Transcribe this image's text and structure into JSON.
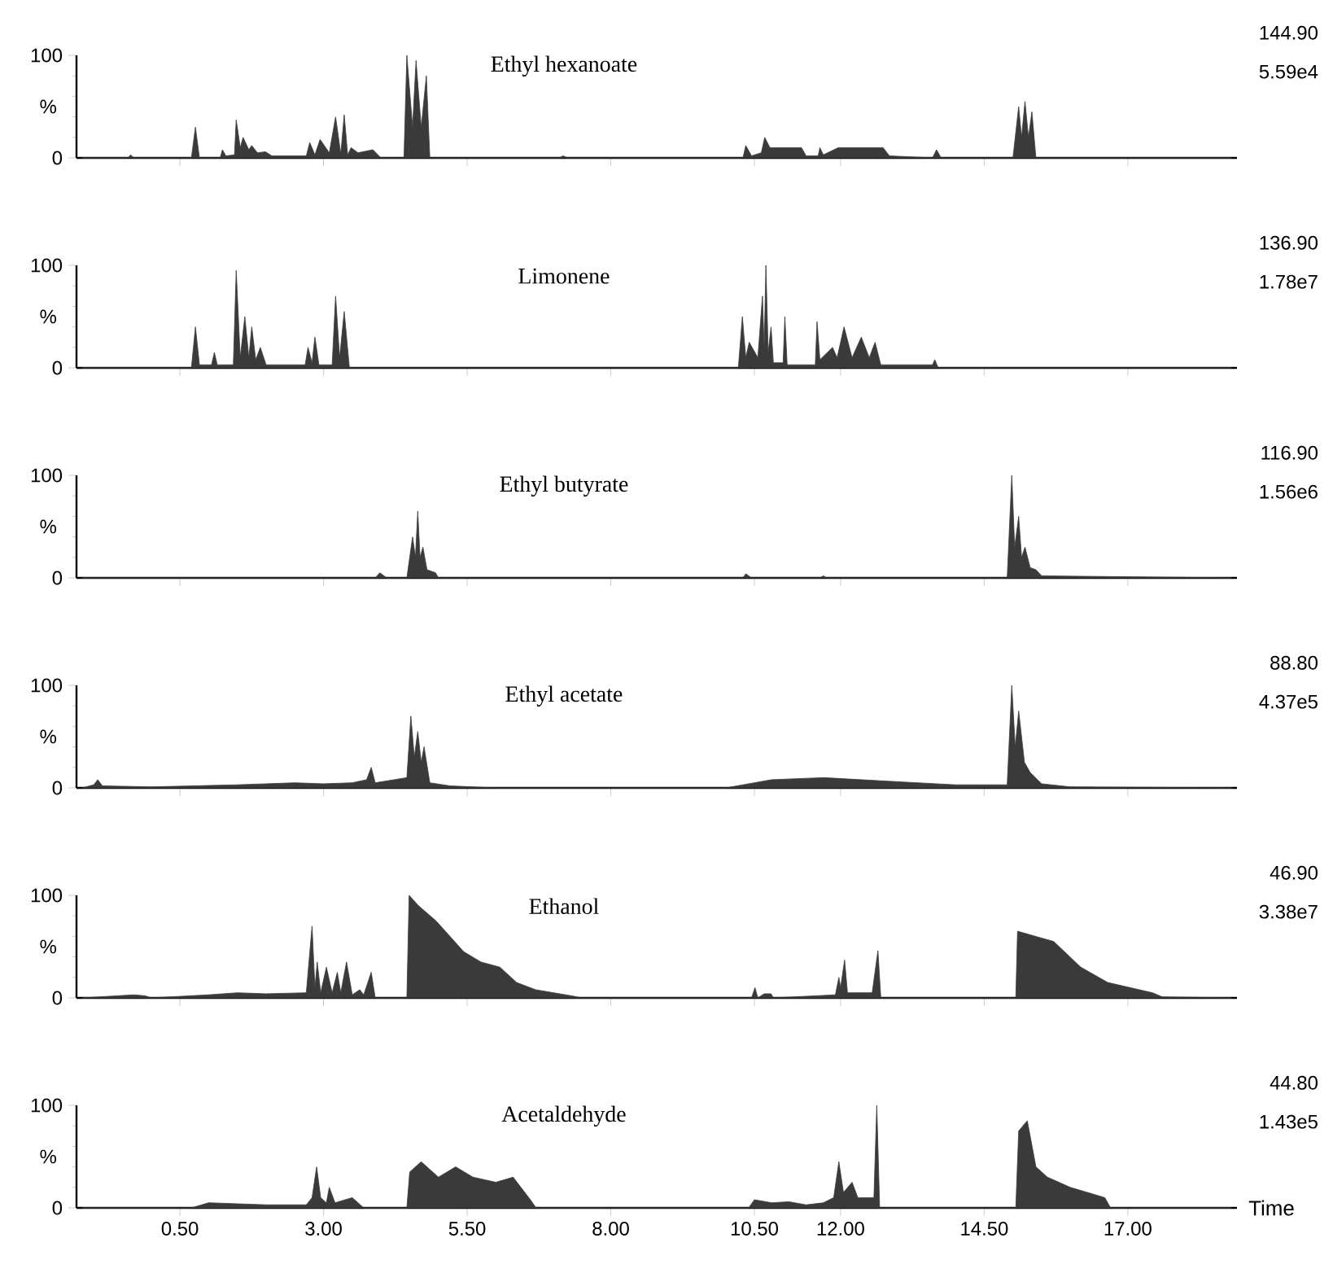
{
  "chart_data": [
    {
      "type": "area",
      "title": "Ethyl hexanoate",
      "annotations": [
        "144.90",
        "5.59e4"
      ],
      "ylabel": "%",
      "color": "#3a3a3a",
      "xlim": [
        -1.3,
        18.9
      ],
      "ylim": [
        0,
        100
      ],
      "yticks": [
        0,
        100
      ],
      "tick_labels": "y",
      "xticks": [
        {
          "value": 0.5,
          "label": null
        },
        {
          "value": 3,
          "label": null
        },
        {
          "value": 5.5,
          "label": null
        },
        {
          "value": 8,
          "label": null
        },
        {
          "value": 10.5,
          "label": null
        },
        {
          "value": 12,
          "label": null
        },
        {
          "value": 14.5,
          "label": null
        },
        {
          "value": 17,
          "label": null
        }
      ],
      "x": [
        -1.2,
        -0.4,
        -0.36,
        -0.3,
        0.7,
        0.77,
        0.84,
        1.2,
        1.24,
        1.3,
        1.45,
        1.48,
        1.55,
        1.6,
        1.7,
        1.75,
        1.85,
        1.99,
        2.1,
        2.7,
        2.76,
        2.85,
        2.94,
        3.1,
        3.21,
        3.3,
        3.36,
        3.42,
        3.48,
        3.6,
        3.86,
        4.0,
        4.4,
        4.45,
        4.55,
        4.61,
        4.7,
        4.79,
        4.85,
        7.1,
        7.17,
        7.25,
        10.3,
        10.35,
        10.45,
        10.62,
        10.68,
        10.77,
        11.05,
        11.32,
        11.4,
        11.61,
        11.64,
        11.7,
        11.96,
        12.74,
        12.85,
        13.6,
        13.67,
        13.75,
        15.0,
        15.1,
        15.15,
        15.21,
        15.27,
        15.33,
        15.4,
        18.8
      ],
      "values": [
        0,
        0,
        3,
        0,
        0,
        30,
        0,
        0,
        8,
        2,
        3,
        37,
        10,
        20,
        8,
        12,
        5,
        6,
        2,
        2,
        15,
        3,
        18,
        5,
        40,
        4,
        42,
        3,
        10,
        5,
        8,
        0,
        0,
        100,
        30,
        95,
        30,
        80,
        0,
        0,
        2,
        0,
        0,
        12,
        2,
        5,
        20,
        10,
        10,
        10,
        2,
        2,
        10,
        3,
        10,
        10,
        2,
        0,
        8,
        0,
        0,
        50,
        20,
        55,
        20,
        45,
        0,
        0
      ]
    },
    {
      "type": "area",
      "title": "Limonene",
      "annotations": [
        "136.90",
        "1.78e7"
      ],
      "ylabel": "%",
      "color": "#3a3a3a",
      "xlim": [
        -1.3,
        18.9
      ],
      "ylim": [
        0,
        100
      ],
      "yticks": [
        0,
        100
      ],
      "tick_labels": "y",
      "xticks": [
        {
          "value": 0.5,
          "label": null
        },
        {
          "value": 3,
          "label": null
        },
        {
          "value": 5.5,
          "label": null
        },
        {
          "value": 8,
          "label": null
        },
        {
          "value": 10.5,
          "label": null
        },
        {
          "value": 12,
          "label": null
        },
        {
          "value": 14.5,
          "label": null
        },
        {
          "value": 17,
          "label": null
        }
      ],
      "x": [
        -1.2,
        0.7,
        0.77,
        0.84,
        1.05,
        1.1,
        1.15,
        1.43,
        1.48,
        1.55,
        1.63,
        1.7,
        1.75,
        1.82,
        1.9,
        2.0,
        2.68,
        2.73,
        2.8,
        2.85,
        2.92,
        3.15,
        3.21,
        3.28,
        3.36,
        3.45,
        10.22,
        10.29,
        10.35,
        10.41,
        10.56,
        10.64,
        10.67,
        10.7,
        10.74,
        10.79,
        10.83,
        11.0,
        11.03,
        11.07,
        11.56,
        11.59,
        11.64,
        11.86,
        11.94,
        12.06,
        12.2,
        12.36,
        12.5,
        12.6,
        12.7,
        13.6,
        13.64,
        13.7,
        18.8
      ],
      "values": [
        0,
        0,
        40,
        3,
        3,
        15,
        3,
        3,
        95,
        10,
        50,
        10,
        40,
        8,
        20,
        3,
        3,
        20,
        5,
        30,
        3,
        3,
        70,
        10,
        55,
        0,
        0,
        50,
        10,
        25,
        10,
        70,
        20,
        100,
        15,
        40,
        5,
        5,
        50,
        3,
        3,
        45,
        8,
        20,
        10,
        40,
        10,
        30,
        10,
        25,
        3,
        3,
        8,
        0,
        0
      ]
    },
    {
      "type": "area",
      "title": "Ethyl butyrate",
      "annotations": [
        "116.90",
        "1.56e6"
      ],
      "ylabel": "%",
      "color": "#3a3a3a",
      "xlim": [
        -1.3,
        18.9
      ],
      "ylim": [
        0,
        100
      ],
      "yticks": [
        0,
        100
      ],
      "tick_labels": "y",
      "xticks": [
        {
          "value": 0.5,
          "label": null
        },
        {
          "value": 3,
          "label": null
        },
        {
          "value": 5.5,
          "label": null
        },
        {
          "value": 8,
          "label": null
        },
        {
          "value": 10.5,
          "label": null
        },
        {
          "value": 12,
          "label": null
        },
        {
          "value": 14.5,
          "label": null
        },
        {
          "value": 17,
          "label": null
        }
      ],
      "x": [
        -1.2,
        3.9,
        3.98,
        4.1,
        4.45,
        4.55,
        4.6,
        4.64,
        4.68,
        4.73,
        4.8,
        4.95,
        5.0,
        10.3,
        10.35,
        10.45,
        11.64,
        11.7,
        11.76,
        14.9,
        14.98,
        15.03,
        15.1,
        15.15,
        15.21,
        15.3,
        15.4,
        15.5,
        18.8
      ],
      "values": [
        0,
        0,
        5,
        0,
        0,
        40,
        20,
        65,
        20,
        30,
        8,
        5,
        0,
        0,
        4,
        0,
        0,
        2,
        0,
        0,
        100,
        30,
        60,
        20,
        30,
        10,
        8,
        2,
        0
      ]
    },
    {
      "type": "area",
      "title": "Ethyl acetate",
      "annotations": [
        "88.80",
        "4.37e5"
      ],
      "ylabel": "%",
      "color": "#3a3a3a",
      "xlim": [
        -1.3,
        18.9
      ],
      "ylim": [
        0,
        100
      ],
      "yticks": [
        0,
        100
      ],
      "tick_labels": "y",
      "xticks": [
        {
          "value": 0.5,
          "label": null
        },
        {
          "value": 3,
          "label": null
        },
        {
          "value": 5.5,
          "label": null
        },
        {
          "value": 8,
          "label": null
        },
        {
          "value": 10.5,
          "label": null
        },
        {
          "value": 12,
          "label": null
        },
        {
          "value": 14.5,
          "label": null
        },
        {
          "value": 17,
          "label": null
        }
      ],
      "x": [
        -1.2,
        -1.0,
        -0.93,
        -0.85,
        0.0,
        1.5,
        2.5,
        3.0,
        3.5,
        3.75,
        3.83,
        3.9,
        4.45,
        4.52,
        4.58,
        4.64,
        4.7,
        4.75,
        4.85,
        5.2,
        6.0,
        10.0,
        10.8,
        11.7,
        13.0,
        14.0,
        14.9,
        14.98,
        15.04,
        15.1,
        15.2,
        15.3,
        15.5,
        16.0,
        18.8
      ],
      "values": [
        0,
        3,
        8,
        2,
        1,
        3,
        5,
        4,
        5,
        8,
        20,
        5,
        10,
        70,
        30,
        55,
        25,
        40,
        5,
        2,
        0,
        0,
        8,
        10,
        6,
        3,
        3,
        100,
        40,
        75,
        25,
        15,
        4,
        1,
        0
      ]
    },
    {
      "type": "area",
      "title": "Ethanol",
      "annotations": [
        "46.90",
        "3.38e7"
      ],
      "ylabel": "%",
      "color": "#3a3a3a",
      "xlim": [
        -1.3,
        18.9
      ],
      "ylim": [
        0,
        100
      ],
      "yticks": [
        0,
        100
      ],
      "tick_labels": "y",
      "xticks": [
        {
          "value": 0.5,
          "label": null
        },
        {
          "value": 3,
          "label": null
        },
        {
          "value": 5.5,
          "label": null
        },
        {
          "value": 8,
          "label": null
        },
        {
          "value": 10.5,
          "label": null
        },
        {
          "value": 12,
          "label": null
        },
        {
          "value": 14.5,
          "label": null
        },
        {
          "value": 17,
          "label": null
        }
      ],
      "x": [
        -1.2,
        -0.3,
        -0.1,
        0.0,
        1.0,
        1.5,
        2.0,
        2.7,
        2.8,
        2.85,
        2.89,
        2.95,
        3.05,
        3.15,
        3.24,
        3.3,
        3.4,
        3.5,
        3.63,
        3.7,
        3.83,
        3.9,
        4.45,
        4.49,
        4.57,
        4.65,
        4.96,
        5.44,
        5.74,
        6.07,
        6.36,
        6.69,
        7.32,
        7.5,
        10.45,
        10.51,
        10.56,
        10.67,
        10.79,
        10.83,
        11.91,
        11.97,
        12.0,
        12.07,
        12.12,
        12.55,
        12.65,
        12.7,
        15.05,
        15.08,
        15.71,
        16.18,
        16.65,
        17.43,
        17.6,
        18.8
      ],
      "values": [
        0,
        3,
        2,
        0,
        3,
        5,
        4,
        5,
        70,
        10,
        35,
        5,
        30,
        5,
        25,
        5,
        35,
        3,
        8,
        3,
        25,
        0,
        0,
        100,
        95,
        90,
        75,
        45,
        35,
        30,
        15,
        8,
        2,
        0,
        0,
        10,
        0,
        4,
        4,
        0,
        3,
        20,
        10,
        37,
        5,
        5,
        46,
        0,
        0,
        65,
        55,
        30,
        15,
        5,
        1,
        0
      ]
    },
    {
      "type": "area",
      "title": "Acetaldehyde",
      "annotations": [
        "44.80",
        "1.43e5"
      ],
      "ylabel": "%",
      "xlabel": "Time",
      "color": "#3a3a3a",
      "xlim": [
        -1.3,
        18.9
      ],
      "ylim": [
        0,
        100
      ],
      "yticks": [
        0,
        100
      ],
      "xticks": [
        {
          "value": 0.5,
          "label": "0.50"
        },
        {
          "value": 3,
          "label": "3.00"
        },
        {
          "value": 5.5,
          "label": "5.50"
        },
        {
          "value": 8,
          "label": "8.00"
        },
        {
          "value": 10.5,
          "label": "10.50"
        },
        {
          "value": 12,
          "label": "12.00"
        },
        {
          "value": 14.5,
          "label": "14.50"
        },
        {
          "value": 17,
          "label": "17.00"
        }
      ],
      "x": [
        -1.2,
        0.7,
        1.0,
        1.5,
        2.0,
        2.7,
        2.8,
        2.88,
        2.95,
        3.05,
        3.1,
        3.2,
        3.5,
        3.7,
        4.45,
        4.5,
        4.7,
        5.0,
        5.3,
        5.6,
        6.0,
        6.3,
        6.6,
        6.7,
        10.4,
        10.5,
        10.8,
        11.1,
        11.4,
        11.7,
        11.88,
        11.97,
        12.05,
        12.2,
        12.3,
        12.58,
        12.63,
        12.68,
        15.05,
        15.1,
        15.25,
        15.4,
        15.6,
        16.0,
        16.3,
        16.6,
        16.7,
        18.8
      ],
      "values": [
        0,
        0,
        5,
        4,
        3,
        3,
        10,
        40,
        10,
        5,
        20,
        5,
        10,
        0,
        0,
        35,
        45,
        30,
        40,
        30,
        25,
        30,
        8,
        0,
        0,
        8,
        5,
        6,
        3,
        5,
        10,
        45,
        15,
        25,
        10,
        10,
        100,
        0,
        0,
        75,
        85,
        40,
        30,
        20,
        15,
        10,
        0,
        0
      ]
    }
  ]
}
